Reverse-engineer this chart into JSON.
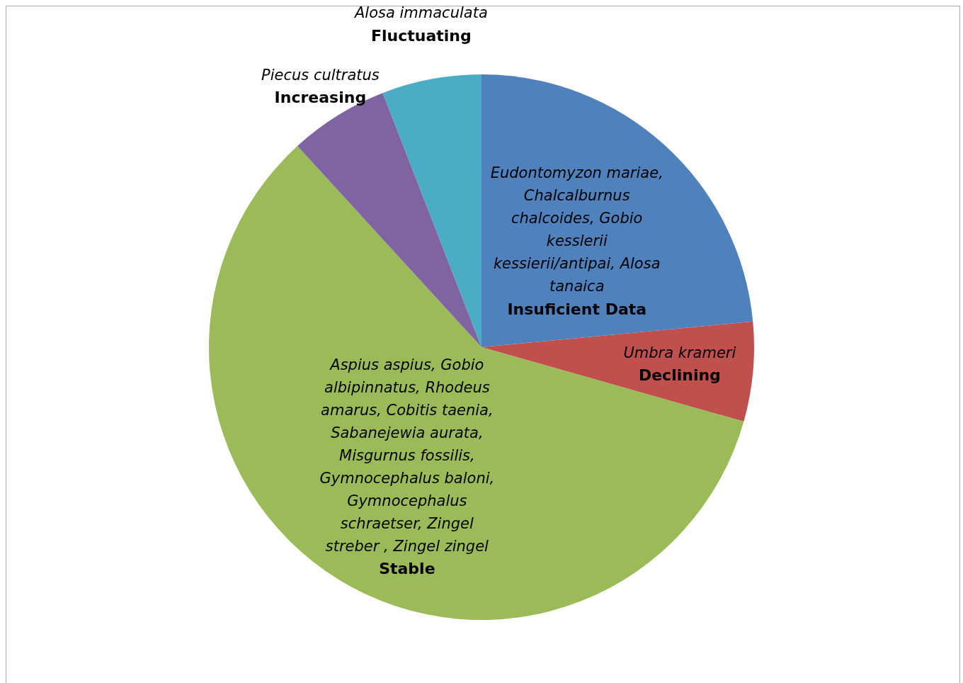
{
  "chart_data": {
    "type": "pie",
    "categories": [
      "Insuficient Data",
      "Declining",
      "Stable",
      "Increasing",
      "Fluctuating"
    ],
    "values": [
      23.5,
      5.9,
      58.8,
      5.9,
      5.9
    ],
    "colors": [
      "#4f81bd",
      "#c0504d",
      "#9bbb59",
      "#8064a2",
      "#4bacc6"
    ],
    "annotations": [
      "Eudontomyzon mariae, Chalcalburnus chalcoides, Gobio kesslerii kessierii/antipai, Alosa tanaica",
      "Umbra krameri",
      "Aspius aspius, Gobio albipinnatus, Rhodeus amarus, Cobitis taenia, Sabanejewia aurata, Misgurnus fossilis, Gymnocephalus baloni, Gymnocephalus schraetser, Zingel streber , Zingel zingel",
      "Piecus cultratus",
      "Alosa immaculata"
    ]
  }
}
